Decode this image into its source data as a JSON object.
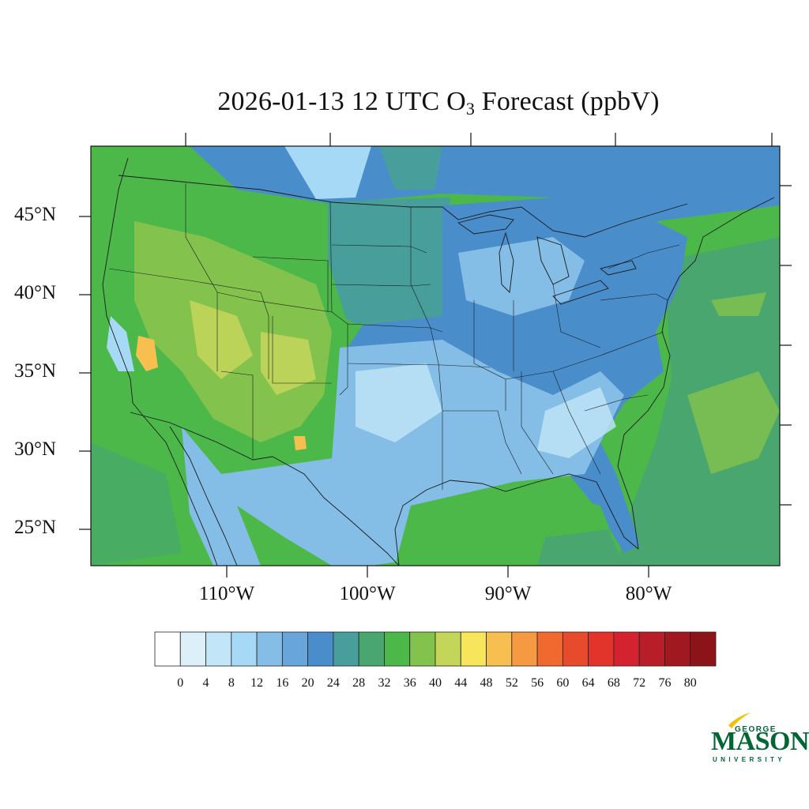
{
  "title": {
    "prefix": "2026-01-13 12 UTC O",
    "subscript": "3",
    "suffix": " Forecast (ppbV)"
  },
  "lat_labels": [
    "45°N",
    "40°N",
    "35°N",
    "30°N",
    "25°N"
  ],
  "lon_labels": [
    "110°W",
    "100°W",
    "90°W",
    "80°W"
  ],
  "colorbar": {
    "ticks": [
      "0",
      "4",
      "8",
      "12",
      "16",
      "20",
      "24",
      "28",
      "32",
      "36",
      "40",
      "44",
      "48",
      "52",
      "56",
      "60",
      "64",
      "68",
      "72",
      "76",
      "80"
    ],
    "colors": [
      "#ffffff",
      "#ddf0fa",
      "#c2e6f8",
      "#a6d9f5",
      "#84bde6",
      "#68a5db",
      "#4a8dcb",
      "#479e9b",
      "#48a66e",
      "#4cb84a",
      "#84c24e",
      "#c4d65a",
      "#f7e65c",
      "#f7be50",
      "#f59a42",
      "#f06a30",
      "#e84a2c",
      "#e2342a",
      "#d42230",
      "#b81e28",
      "#a01820",
      "#8c1418"
    ]
  },
  "map_colors": {
    "ocean_pacific": "#4cb84a",
    "ocean_atlantic": "#4cb84a",
    "plains": "#479e9b",
    "east": "#4a8dcb",
    "texas_se": "#84bde6",
    "west": "#4cb84a",
    "west_high": "#84c24e",
    "hot": "#f7be50"
  },
  "logo": {
    "george": "GEORGE",
    "mason": "MASON",
    "university": "UNIVERSITY"
  }
}
